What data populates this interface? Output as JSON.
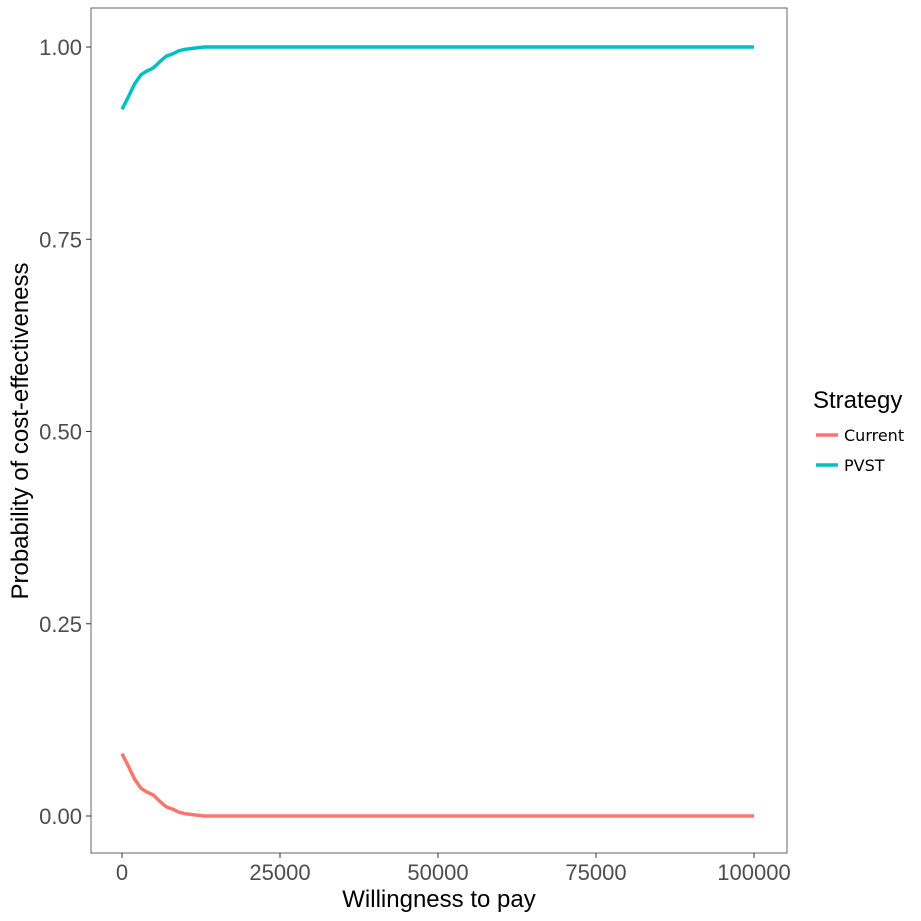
{
  "chart_data": {
    "type": "line",
    "title": "",
    "xlabel": "Willingness to pay",
    "ylabel": "Probability of cost-effectiveness",
    "xlim": [
      0,
      100000
    ],
    "ylim": [
      0,
      1
    ],
    "x_ticks": [
      "0",
      "25000",
      "50000",
      "75000",
      "100000"
    ],
    "x_tick_values": [
      0,
      25000,
      50000,
      75000,
      100000
    ],
    "y_ticks": [
      "0.00",
      "0.25",
      "0.50",
      "0.75",
      "1.00"
    ],
    "y_tick_values": [
      0,
      0.25,
      0.5,
      0.75,
      1
    ],
    "grid": false,
    "legend": {
      "title": "Strategy",
      "placement": "right"
    },
    "x": [
      0,
      1000,
      2000,
      3000,
      4000,
      5000,
      6000,
      7000,
      8000,
      9000,
      10000,
      11000,
      12000,
      13000,
      20000,
      40000,
      60000,
      80000,
      100000
    ],
    "series": [
      {
        "name": "Current",
        "color": "#F8766D",
        "values": [
          0.081,
          0.065,
          0.048,
          0.036,
          0.031,
          0.027,
          0.019,
          0.012,
          0.009,
          0.005,
          0.003,
          0.002,
          0.001,
          0.0,
          0.0,
          0.0,
          0.0,
          0.0,
          0.0
        ]
      },
      {
        "name": "PVST",
        "color": "#00BFC4",
        "values": [
          0.919,
          0.935,
          0.952,
          0.964,
          0.969,
          0.973,
          0.981,
          0.988,
          0.991,
          0.995,
          0.997,
          0.998,
          0.999,
          1.0,
          1.0,
          1.0,
          1.0,
          1.0,
          1.0
        ]
      }
    ]
  }
}
